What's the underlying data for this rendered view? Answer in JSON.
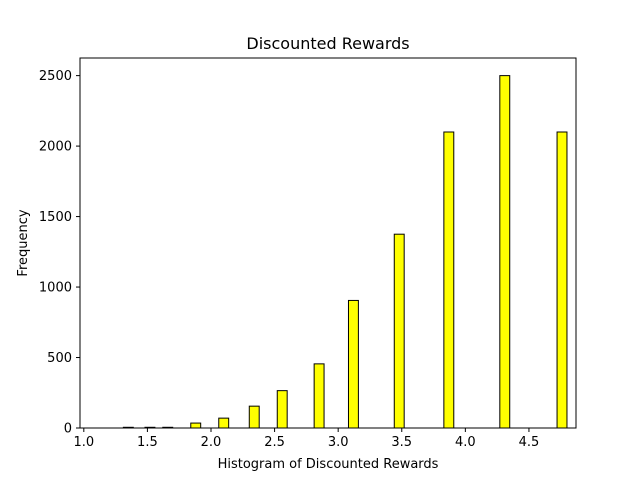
{
  "chart_data": {
    "type": "bar",
    "title": "Discounted Rewards",
    "xlabel": "Histogram of Discounted Rewards",
    "ylabel": "Frequency",
    "xlim": [
      0.97,
      4.87
    ],
    "ylim": [
      0,
      2625
    ],
    "xticks": [
      1.0,
      1.5,
      2.0,
      2.5,
      3.0,
      3.5,
      4.0,
      4.5
    ],
    "xtick_labels": [
      "1.0",
      "1.5",
      "2.0",
      "2.5",
      "3.0",
      "3.5",
      "4.0",
      "4.5"
    ],
    "yticks": [
      0,
      500,
      1000,
      1500,
      2000,
      2500
    ],
    "ytick_labels": [
      "0",
      "500",
      "1000",
      "1500",
      "2000",
      "2500"
    ],
    "bar_width": 0.078,
    "bars": [
      {
        "x": 1.35,
        "value": 5
      },
      {
        "x": 1.52,
        "value": 5
      },
      {
        "x": 1.66,
        "value": 5
      },
      {
        "x": 1.88,
        "value": 35
      },
      {
        "x": 2.1,
        "value": 70
      },
      {
        "x": 2.34,
        "value": 155
      },
      {
        "x": 2.56,
        "value": 265
      },
      {
        "x": 2.85,
        "value": 455
      },
      {
        "x": 3.12,
        "value": 905
      },
      {
        "x": 3.48,
        "value": 1375
      },
      {
        "x": 3.87,
        "value": 2100
      },
      {
        "x": 4.31,
        "value": 2500
      },
      {
        "x": 4.76,
        "value": 2100
      }
    ],
    "bar_color": "#ffff00",
    "edge_color": "#000000",
    "grid": false,
    "legend": "none"
  }
}
